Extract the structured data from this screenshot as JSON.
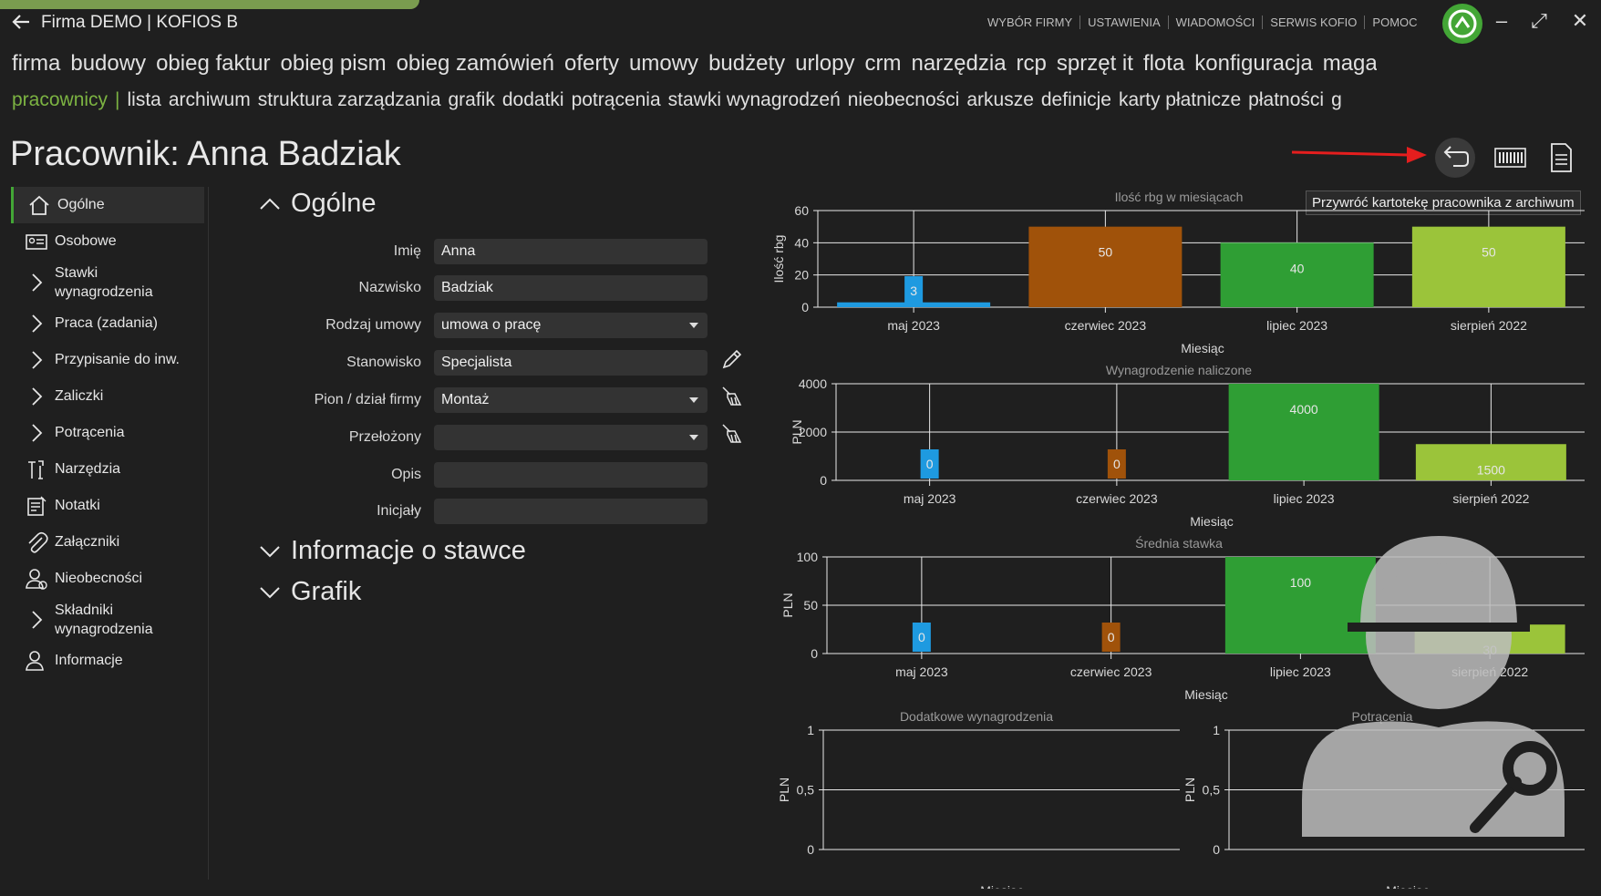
{
  "app": {
    "title": "Firma DEMO | KOFIOS B",
    "top_menu": [
      "WYBÓR FIRMY",
      "USTAWIENIA",
      "WIADOMOŚCI",
      "SERWIS KOFIO",
      "POMOC"
    ]
  },
  "modules": [
    "firma",
    "budowy",
    "obieg faktur",
    "obieg pism",
    "obieg zamówień",
    "oferty",
    "umowy",
    "budżety",
    "urlopy",
    "crm",
    "narzędzia",
    "rcp",
    "sprzęt it",
    "flota",
    "konfiguracja",
    "magazy"
  ],
  "submenu": {
    "active": "pracownicy",
    "separator": "|",
    "items": [
      "lista",
      "archiwum",
      "struktura zarządzania",
      "grafik",
      "dodatki",
      "potrącenia",
      "stawki wynagrodzeń",
      "nieobecności",
      "arkusze",
      "definicje",
      "karty płatnicze",
      "płatności",
      "g"
    ]
  },
  "page": {
    "title": "Pracownik: Anna Badziak",
    "tooltip": "Przywróć kartotekę pracownika z archiwum"
  },
  "sidebar": {
    "items": [
      {
        "label": "Ogólne",
        "icon": "home-icon"
      },
      {
        "label": "Osobowe",
        "icon": "id-card-icon"
      },
      {
        "label": "Stawki wynagrodzenia",
        "icon": "chevron-right-icon"
      },
      {
        "label": "Praca (zadania)",
        "icon": "chevron-right-icon"
      },
      {
        "label": "Przypisanie do inw.",
        "icon": "chevron-right-icon"
      },
      {
        "label": "Zaliczki",
        "icon": "chevron-right-icon"
      },
      {
        "label": "Potrącenia",
        "icon": "chevron-right-icon"
      },
      {
        "label": "Narzędzia",
        "icon": "tools-icon"
      },
      {
        "label": "Notatki",
        "icon": "notes-icon"
      },
      {
        "label": "Załączniki",
        "icon": "paperclip-icon"
      },
      {
        "label": "Nieobecności",
        "icon": "person-icon"
      },
      {
        "label": "Składniki wynagrodzenia",
        "icon": "chevron-right-icon"
      },
      {
        "label": "Informacje",
        "icon": "person-info-icon"
      }
    ]
  },
  "form": {
    "section_general": "Ogólne",
    "section_rate": "Informacje o stawce",
    "section_schedule": "Grafik",
    "fields": {
      "first_name": {
        "label": "Imię",
        "value": "Anna"
      },
      "last_name": {
        "label": "Nazwisko",
        "value": "Badziak"
      },
      "contract": {
        "label": "Rodzaj umowy",
        "value": "umowa o pracę"
      },
      "position": {
        "label": "Stanowisko",
        "value": "Specjalista"
      },
      "department": {
        "label": "Pion / dział firmy",
        "value": "Montaż"
      },
      "supervisor": {
        "label": "Przełożony",
        "value": ""
      },
      "description": {
        "label": "Opis",
        "value": ""
      },
      "initials": {
        "label": "Inicjały",
        "value": ""
      }
    }
  },
  "chart_data": [
    {
      "type": "bar",
      "title": "Ilość rbg w miesiącach",
      "xlabel": "Miesiąc",
      "ylabel": "Ilość rbg",
      "ylim": [
        0,
        60
      ],
      "yticks": [
        "0",
        "20",
        "40",
        "60"
      ],
      "categories": [
        "maj 2023",
        "czerwiec 2023",
        "lipiec 2023",
        "sierpień 2022"
      ],
      "values": [
        3,
        50,
        40,
        50
      ],
      "labels": [
        "3",
        "50",
        "40",
        "50"
      ],
      "colors": [
        "#1e9ae0",
        "#a0520a",
        "#2f9e34",
        "#9bc43a"
      ]
    },
    {
      "type": "bar",
      "title": "Wynagrodzenie naliczone",
      "xlabel": "Miesiąc",
      "ylabel": "PLN",
      "ylim": [
        0,
        4000
      ],
      "yticks": [
        "0",
        "2000",
        "4000"
      ],
      "categories": [
        "maj 2023",
        "czerwiec 2023",
        "lipiec 2023",
        "sierpień 2022"
      ],
      "values": [
        0,
        0,
        4000,
        1500
      ],
      "labels": [
        "0",
        "0",
        "4000",
        "1500"
      ],
      "colors": [
        "#1e9ae0",
        "#a0520a",
        "#2f9e34",
        "#9bc43a"
      ]
    },
    {
      "type": "bar",
      "title": "Średnia stawka",
      "xlabel": "Miesiąc",
      "ylabel": "PLN",
      "ylim": [
        0,
        100
      ],
      "yticks": [
        "0",
        "50",
        "100"
      ],
      "categories": [
        "maj 2023",
        "czerwiec 2023",
        "lipiec 2023",
        "sierpień 2022"
      ],
      "values": [
        0,
        0,
        100,
        30
      ],
      "labels": [
        "0",
        "0",
        "100",
        "30"
      ],
      "colors": [
        "#1e9ae0",
        "#a0520a",
        "#2f9e34",
        "#9bc43a"
      ]
    },
    {
      "type": "bar",
      "title": "Dodatkowe wynagrodzenia",
      "xlabel": "Miesiąc",
      "ylabel": "PLN",
      "ylim": [
        0,
        1
      ],
      "yticks": [
        "0",
        "0,5",
        "1"
      ],
      "categories": [],
      "values": []
    },
    {
      "type": "bar",
      "title": "Potrącenia",
      "xlabel": "Miesiąc",
      "ylabel": "PLN",
      "ylim": [
        0,
        1
      ],
      "yticks": [
        "0",
        "0,5",
        "1"
      ],
      "categories": [],
      "values": []
    }
  ],
  "colors": {
    "accent": "#43a636",
    "active_text": "#7cb342",
    "background": "#1f1f1f"
  }
}
